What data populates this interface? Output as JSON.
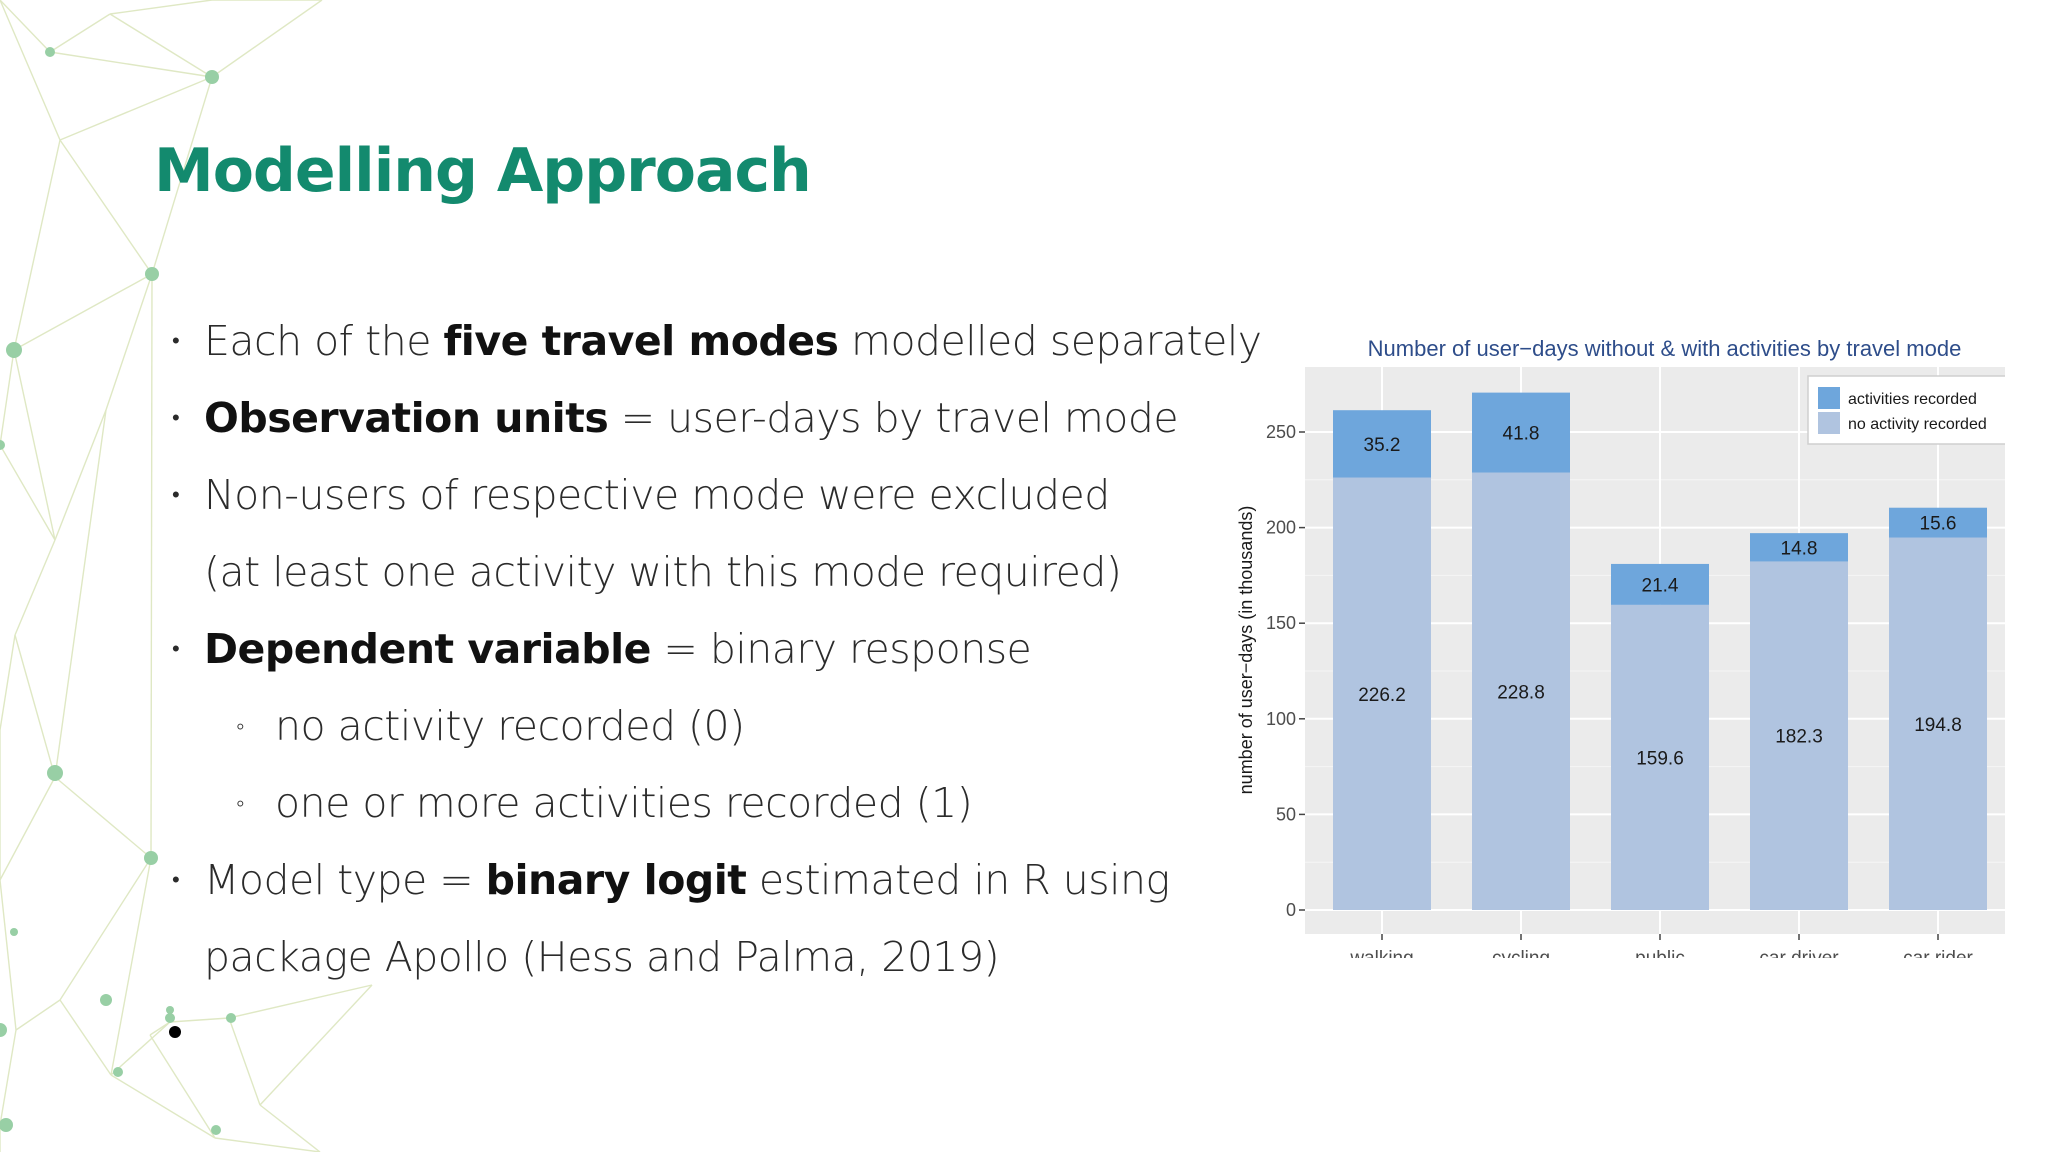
{
  "slide": {
    "title": "Modelling Approach",
    "bullets": [
      {
        "level": 1,
        "marker": "•",
        "parts": [
          {
            "t": "Each of the "
          },
          {
            "t": "five travel modes",
            "b": true
          },
          {
            "t": " modelled separately"
          }
        ]
      },
      {
        "level": 1,
        "marker": "•",
        "parts": [
          {
            "t": "Observation units",
            "b": true
          },
          {
            "t": " = user-days by travel mode"
          }
        ]
      },
      {
        "level": 1,
        "marker": "•",
        "parts": [
          {
            "t": "Non-users of respective mode were excluded"
          }
        ]
      },
      {
        "level": 0,
        "marker": "",
        "parts": [
          {
            "t": "(at least one activity with this mode required)"
          }
        ]
      },
      {
        "level": 1,
        "marker": "•",
        "parts": [
          {
            "t": "Dependent variable",
            "b": true
          },
          {
            "t": " = binary response"
          }
        ]
      },
      {
        "level": 2,
        "marker": "◦",
        "parts": [
          {
            "t": "no activity recorded (0)"
          }
        ]
      },
      {
        "level": 2,
        "marker": "◦",
        "parts": [
          {
            "t": "one or more activities recorded (1)"
          }
        ]
      },
      {
        "level": 1,
        "marker": "•",
        "parts": [
          {
            "t": "Model type = "
          },
          {
            "t": "binary logit",
            "b": true
          },
          {
            "t": " estimated in R using"
          }
        ]
      },
      {
        "level": 0,
        "marker": "",
        "parts": [
          {
            "t": "package Apollo (Hess and Palma, 2019)"
          }
        ]
      }
    ]
  },
  "colors": {
    "title": "#138a6e",
    "panel_bg": "#ebebeb",
    "bar_bottom": "#b0c4e0",
    "bar_top": "#6ea6dc",
    "chart_title": "#2e4d8a",
    "decor_line": "#dfe8c4",
    "decor_dot": "#98cfa5"
  },
  "chart_data": {
    "type": "bar",
    "stacked": true,
    "title": "Number of user−days without & with activities by travel mode",
    "xlabel": "",
    "ylabel": "number of user−days (in thousands)",
    "categories": [
      "walking",
      "cycling",
      "public",
      "car driver",
      "car rider"
    ],
    "series": [
      {
        "name": "no activity recorded",
        "values": [
          226.2,
          228.8,
          159.6,
          182.3,
          194.8
        ],
        "color": "#b0c4e0"
      },
      {
        "name": "activities recorded",
        "values": [
          35.2,
          41.8,
          21.4,
          14.8,
          15.6
        ],
        "color": "#6ea6dc"
      }
    ],
    "ylim": [
      0,
      272
    ],
    "yticks": [
      0,
      50,
      100,
      150,
      200,
      250
    ],
    "grid": true,
    "legend": "top-right",
    "legend_order": [
      "activities recorded",
      "no activity recorded"
    ]
  }
}
